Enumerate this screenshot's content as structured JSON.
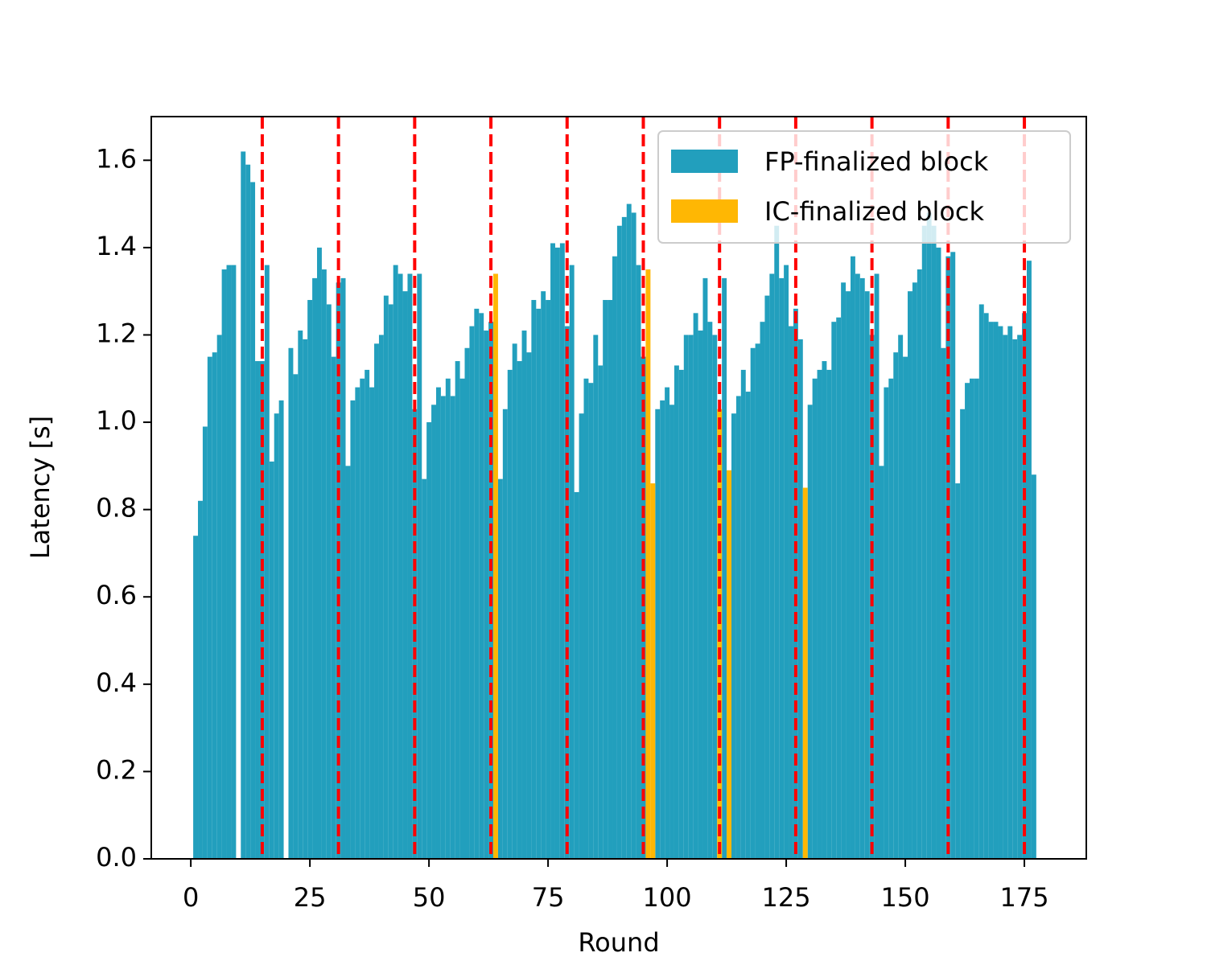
{
  "chart_data": {
    "type": "bar",
    "x_label": "Round",
    "y_label": "Latency [s]",
    "x": [
      1,
      2,
      3,
      4,
      5,
      6,
      7,
      8,
      9,
      10,
      11,
      12,
      13,
      14,
      15,
      16,
      17,
      18,
      19,
      20,
      21,
      22,
      23,
      24,
      25,
      26,
      27,
      28,
      29,
      30,
      31,
      32,
      33,
      34,
      35,
      36,
      37,
      38,
      39,
      40,
      41,
      42,
      43,
      44,
      45,
      46,
      47,
      48,
      49,
      50,
      51,
      52,
      53,
      54,
      55,
      56,
      57,
      58,
      59,
      60,
      61,
      62,
      63,
      64,
      65,
      66,
      67,
      68,
      69,
      70,
      71,
      72,
      73,
      74,
      75,
      76,
      77,
      78,
      79,
      80,
      81,
      82,
      83,
      84,
      85,
      86,
      87,
      88,
      89,
      90,
      91,
      92,
      93,
      94,
      95,
      96,
      97,
      98,
      99,
      100,
      101,
      102,
      103,
      104,
      105,
      106,
      107,
      108,
      109,
      110,
      111,
      112,
      113,
      114,
      115,
      116,
      117,
      118,
      119,
      120,
      121,
      122,
      123,
      124,
      125,
      126,
      127,
      128,
      129,
      130,
      131,
      132,
      133,
      134,
      135,
      136,
      137,
      138,
      139,
      140,
      141,
      142,
      143,
      144,
      145,
      146,
      147,
      148,
      149,
      150,
      151,
      152,
      153,
      154,
      155,
      156,
      157,
      158,
      159,
      160,
      161,
      162,
      163,
      164,
      165,
      166,
      167,
      168,
      169,
      170,
      171,
      172,
      173,
      174,
      175,
      176,
      177
    ],
    "series": [
      {
        "name": "FP-finalized block",
        "color": "#229fbd",
        "values": [
          0.74,
          0.82,
          0.99,
          1.15,
          1.16,
          1.2,
          1.35,
          1.36,
          1.36,
          null,
          1.62,
          1.59,
          1.55,
          1.14,
          1.14,
          1.36,
          0.91,
          1.02,
          1.05,
          null,
          1.17,
          1.11,
          1.21,
          1.19,
          1.28,
          1.33,
          1.4,
          1.35,
          1.27,
          1.15,
          1.32,
          1.33,
          0.9,
          1.05,
          1.08,
          1.1,
          1.12,
          1.08,
          1.18,
          1.2,
          1.29,
          1.27,
          1.36,
          1.34,
          1.3,
          1.34,
          1.03,
          1.34,
          0.87,
          1.0,
          1.04,
          1.08,
          1.06,
          1.1,
          1.06,
          1.14,
          1.1,
          1.17,
          1.22,
          1.26,
          1.25,
          1.21,
          1.23,
          null,
          0.87,
          1.03,
          1.12,
          1.18,
          1.14,
          1.21,
          1.16,
          1.28,
          1.26,
          1.3,
          1.28,
          1.41,
          1.4,
          1.41,
          1.22,
          1.36,
          0.84,
          1.02,
          1.1,
          1.09,
          1.2,
          1.13,
          1.28,
          1.28,
          1.38,
          1.45,
          1.47,
          1.5,
          1.48,
          1.36,
          1.15,
          null,
          null,
          1.03,
          1.05,
          1.08,
          1.04,
          1.13,
          1.12,
          1.2,
          1.2,
          1.25,
          1.21,
          1.33,
          1.23,
          1.2,
          null,
          1.33,
          null,
          1.02,
          1.06,
          1.12,
          1.07,
          1.17,
          1.18,
          1.23,
          1.29,
          1.34,
          1.45,
          1.33,
          1.36,
          1.22,
          1.26,
          1.19,
          null,
          1.04,
          1.1,
          1.12,
          1.14,
          1.12,
          1.23,
          1.24,
          1.32,
          1.3,
          1.38,
          1.34,
          1.33,
          1.3,
          1.2,
          1.34,
          0.9,
          1.08,
          1.1,
          1.16,
          1.2,
          1.15,
          1.3,
          1.32,
          1.35,
          1.45,
          1.48,
          1.45,
          1.4,
          1.17,
          1.38,
          1.39,
          0.86,
          1.03,
          1.09,
          1.1,
          1.1,
          1.27,
          1.25,
          1.23,
          1.23,
          1.22,
          1.2,
          1.22,
          1.19,
          1.2,
          1.25,
          1.37,
          0.88
        ]
      },
      {
        "name": "IC-finalized block",
        "color": "#ffb703",
        "values": [
          null,
          null,
          null,
          null,
          null,
          null,
          null,
          null,
          null,
          null,
          null,
          null,
          null,
          null,
          null,
          null,
          null,
          null,
          null,
          null,
          null,
          null,
          null,
          null,
          null,
          null,
          null,
          null,
          null,
          null,
          null,
          null,
          null,
          null,
          null,
          null,
          null,
          null,
          null,
          null,
          null,
          null,
          null,
          null,
          null,
          null,
          null,
          null,
          null,
          null,
          null,
          null,
          null,
          null,
          null,
          null,
          null,
          null,
          null,
          null,
          null,
          null,
          null,
          1.34,
          null,
          null,
          null,
          null,
          null,
          null,
          null,
          null,
          null,
          null,
          null,
          null,
          null,
          null,
          null,
          null,
          null,
          null,
          null,
          null,
          null,
          null,
          null,
          null,
          null,
          null,
          null,
          null,
          null,
          null,
          null,
          1.35,
          0.86,
          null,
          null,
          null,
          null,
          null,
          null,
          null,
          null,
          null,
          null,
          null,
          null,
          null,
          1.03,
          null,
          0.89,
          null,
          null,
          null,
          null,
          null,
          null,
          null,
          null,
          null,
          null,
          null,
          null,
          null,
          null,
          null,
          0.85,
          null,
          null,
          null,
          null,
          null,
          null,
          null,
          null,
          null,
          null,
          null,
          null,
          null,
          null,
          null,
          null,
          null,
          null,
          null,
          null,
          null,
          null,
          null,
          null,
          null,
          null,
          null,
          null,
          null,
          null,
          null,
          null,
          null,
          null,
          null,
          null,
          null,
          null,
          null,
          null,
          null,
          null,
          null,
          null,
          null,
          null,
          null,
          null
        ]
      }
    ],
    "vlines": [
      15,
      31,
      47,
      63,
      79,
      95,
      111,
      127,
      143,
      159,
      175
    ],
    "vline_color": "#ff0000",
    "xlim": [
      -8.3,
      188
    ],
    "ylim": [
      0,
      1.7
    ],
    "xticks": [
      0,
      25,
      50,
      75,
      100,
      125,
      150,
      175
    ],
    "yticks": [
      {
        "value": 0,
        "label": "0.0"
      },
      0.2,
      0.4,
      0.6,
      0.8,
      {
        "value": 1,
        "label": "1.0"
      },
      1.2,
      1.4,
      1.6
    ],
    "legend": "upper right"
  }
}
